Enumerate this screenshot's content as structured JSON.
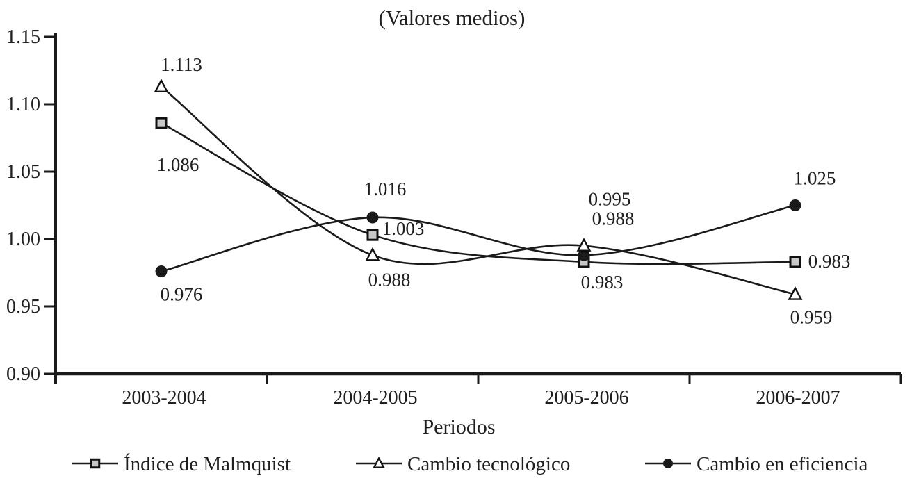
{
  "chart_data": {
    "type": "line",
    "title": "(Valores medios)",
    "xlabel": "Periodos",
    "ylabel": "",
    "categories": [
      "2003-2004",
      "2004-2005",
      "2005-2006",
      "2006-2007"
    ],
    "series": [
      {
        "name": "Índice de Malmquist",
        "marker": "square",
        "marker_fill": "#c8c8c8",
        "values": [
          1.086,
          1.003,
          0.983,
          0.983
        ],
        "labels": [
          "1.086",
          "1.003",
          "0.983",
          "0.983"
        ]
      },
      {
        "name": "Cambio tecnológico",
        "marker": "triangle",
        "marker_fill": "#fdfdfd",
        "values": [
          1.113,
          0.988,
          0.995,
          0.959
        ],
        "labels": [
          "1.113",
          "0.988",
          "0.995",
          "0.959"
        ]
      },
      {
        "name": "Cambio en eficiencia",
        "marker": "circle",
        "marker_fill": "#1a1a1a",
        "values": [
          0.976,
          1.016,
          0.988,
          1.025
        ],
        "labels": [
          "0.976",
          "1.016",
          "0.988",
          "1.025"
        ]
      }
    ],
    "ylim": [
      0.9,
      1.15
    ],
    "yticks": [
      0.9,
      0.95,
      1.0,
      1.05,
      1.1,
      1.15
    ],
    "ytick_labels": [
      "0.90",
      "0.95",
      "1.00",
      "1.05",
      "1.10",
      "1.15"
    ],
    "grid": false,
    "smooth": true,
    "legend_position": "bottom",
    "line_color": "#1a1a1a",
    "axis_color": "#1a1a1a"
  }
}
